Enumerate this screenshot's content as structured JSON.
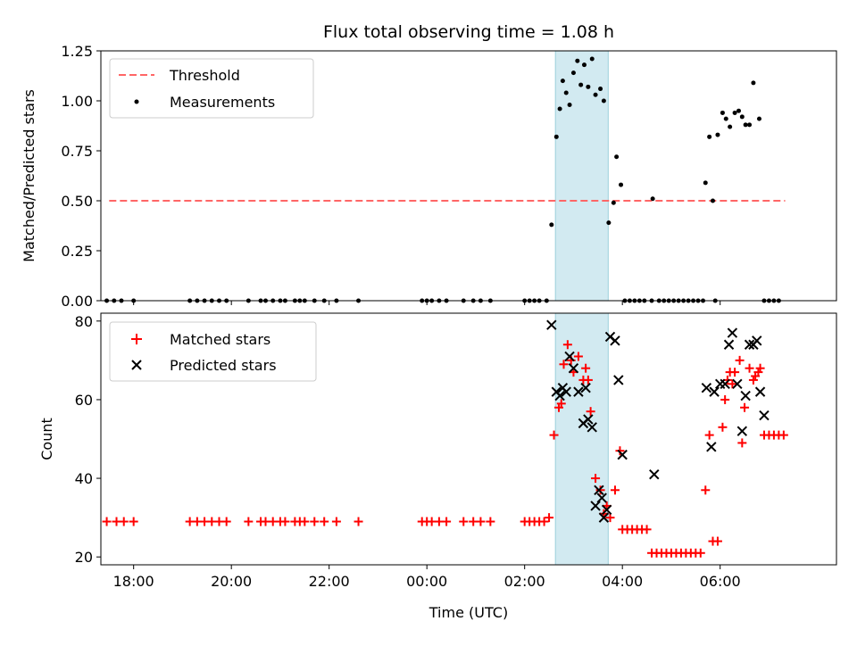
{
  "chart_data": [
    {
      "type": "scatter",
      "title": "Flux total observing time = 1.08 h",
      "xlabel": "",
      "ylabel": "Matched/Predicted stars",
      "xlim": [
        17.33,
        32.38
      ],
      "ylim": [
        0,
        1.25
      ],
      "yticks": [
        "0.00",
        "0.25",
        "0.50",
        "0.75",
        "1.00",
        "1.25"
      ],
      "highlight_span": {
        "x0": 26.63,
        "x1": 27.71,
        "color": "#add8e6"
      },
      "legend": {
        "placement": "top-left",
        "entries": [
          "Threshold",
          "Measurements"
        ]
      },
      "threshold": {
        "name": "Threshold",
        "y": 0.5,
        "x": [
          17.5,
          31.33
        ],
        "color": "#ff6666",
        "style": "dashed"
      },
      "series": [
        {
          "name": "Measurements",
          "color": "#000000",
          "marker": "dot",
          "points": [
            [
              17.45,
              0
            ],
            [
              17.6,
              0
            ],
            [
              17.75,
              0
            ],
            [
              18.0,
              0
            ],
            [
              19.15,
              0
            ],
            [
              19.3,
              0
            ],
            [
              19.45,
              0
            ],
            [
              19.6,
              0
            ],
            [
              19.75,
              0
            ],
            [
              19.9,
              0
            ],
            [
              20.35,
              0
            ],
            [
              20.6,
              0
            ],
            [
              20.7,
              0
            ],
            [
              20.85,
              0
            ],
            [
              21.0,
              0
            ],
            [
              21.1,
              0
            ],
            [
              21.3,
              0
            ],
            [
              21.4,
              0
            ],
            [
              21.5,
              0
            ],
            [
              21.7,
              0
            ],
            [
              21.9,
              0
            ],
            [
              22.15,
              0
            ],
            [
              22.6,
              0
            ],
            [
              23.9,
              0
            ],
            [
              24.0,
              0
            ],
            [
              24.1,
              0
            ],
            [
              24.25,
              0
            ],
            [
              24.4,
              0
            ],
            [
              24.75,
              0
            ],
            [
              24.95,
              0
            ],
            [
              25.1,
              0
            ],
            [
              25.3,
              0
            ],
            [
              26.0,
              0
            ],
            [
              26.1,
              0
            ],
            [
              26.2,
              0
            ],
            [
              26.3,
              0
            ],
            [
              26.45,
              0
            ],
            [
              26.55,
              0.38
            ],
            [
              26.65,
              0.82
            ],
            [
              26.72,
              0.96
            ],
            [
              26.78,
              1.1
            ],
            [
              26.85,
              1.04
            ],
            [
              26.92,
              0.98
            ],
            [
              27.0,
              1.14
            ],
            [
              27.08,
              1.2
            ],
            [
              27.15,
              1.08
            ],
            [
              27.22,
              1.18
            ],
            [
              27.3,
              1.07
            ],
            [
              27.38,
              1.21
            ],
            [
              27.45,
              1.03
            ],
            [
              27.55,
              1.06
            ],
            [
              27.62,
              1.0
            ],
            [
              27.72,
              0.39
            ],
            [
              27.82,
              0.49
            ],
            [
              27.88,
              0.72
            ],
            [
              27.97,
              0.58
            ],
            [
              28.05,
              0
            ],
            [
              28.15,
              0
            ],
            [
              28.25,
              0
            ],
            [
              28.35,
              0
            ],
            [
              28.45,
              0
            ],
            [
              28.6,
              0
            ],
            [
              28.62,
              0.51
            ],
            [
              28.75,
              0
            ],
            [
              28.85,
              0
            ],
            [
              28.95,
              0
            ],
            [
              29.05,
              0
            ],
            [
              29.15,
              0
            ],
            [
              29.25,
              0
            ],
            [
              29.35,
              0
            ],
            [
              29.45,
              0
            ],
            [
              29.55,
              0
            ],
            [
              29.65,
              0
            ],
            [
              29.7,
              0.59
            ],
            [
              29.78,
              0.82
            ],
            [
              29.85,
              0.5
            ],
            [
              29.9,
              0
            ],
            [
              29.95,
              0.83
            ],
            [
              30.05,
              0.94
            ],
            [
              30.12,
              0.91
            ],
            [
              30.2,
              0.87
            ],
            [
              30.3,
              0.94
            ],
            [
              30.38,
              0.95
            ],
            [
              30.45,
              0.92
            ],
            [
              30.52,
              0.88
            ],
            [
              30.6,
              0.88
            ],
            [
              30.68,
              1.09
            ],
            [
              30.8,
              0.91
            ],
            [
              30.9,
              0
            ],
            [
              31.0,
              0
            ],
            [
              31.1,
              0
            ],
            [
              31.2,
              0
            ]
          ]
        }
      ]
    },
    {
      "type": "scatter",
      "title": "",
      "xlabel": "Time (UTC)",
      "ylabel": "Count",
      "xlim": [
        17.33,
        32.38
      ],
      "ylim": [
        18,
        82
      ],
      "yticks": [
        "20",
        "40",
        "60",
        "80"
      ],
      "xticks": [
        "18:00",
        "20:00",
        "22:00",
        "00:00",
        "02:00",
        "04:00",
        "06:00"
      ],
      "xtick_values": [
        18,
        20,
        22,
        24,
        26,
        28,
        30
      ],
      "highlight_span": {
        "x0": 26.63,
        "x1": 27.71,
        "color": "#add8e6"
      },
      "legend": {
        "placement": "top-left",
        "entries": [
          "Matched stars",
          "Predicted stars"
        ]
      },
      "series": [
        {
          "name": "Matched stars",
          "color": "#ff0000",
          "marker": "plus",
          "points": [
            [
              17.45,
              29
            ],
            [
              17.65,
              29
            ],
            [
              17.8,
              29
            ],
            [
              18.0,
              29
            ],
            [
              19.15,
              29
            ],
            [
              19.3,
              29
            ],
            [
              19.45,
              29
            ],
            [
              19.6,
              29
            ],
            [
              19.75,
              29
            ],
            [
              19.9,
              29
            ],
            [
              20.35,
              29
            ],
            [
              20.6,
              29
            ],
            [
              20.7,
              29
            ],
            [
              20.85,
              29
            ],
            [
              21.0,
              29
            ],
            [
              21.1,
              29
            ],
            [
              21.3,
              29
            ],
            [
              21.4,
              29
            ],
            [
              21.5,
              29
            ],
            [
              21.7,
              29
            ],
            [
              21.9,
              29
            ],
            [
              22.15,
              29
            ],
            [
              22.6,
              29
            ],
            [
              23.9,
              29
            ],
            [
              24.0,
              29
            ],
            [
              24.1,
              29
            ],
            [
              24.25,
              29
            ],
            [
              24.4,
              29
            ],
            [
              24.75,
              29
            ],
            [
              24.95,
              29
            ],
            [
              25.1,
              29
            ],
            [
              25.3,
              29
            ],
            [
              26.0,
              29
            ],
            [
              26.1,
              29
            ],
            [
              26.2,
              29
            ],
            [
              26.3,
              29
            ],
            [
              26.4,
              29
            ],
            [
              26.5,
              30
            ],
            [
              26.6,
              51
            ],
            [
              26.7,
              58
            ],
            [
              26.75,
              59
            ],
            [
              26.8,
              69
            ],
            [
              26.88,
              74
            ],
            [
              26.95,
              70
            ],
            [
              27.0,
              67
            ],
            [
              27.1,
              71
            ],
            [
              27.2,
              65
            ],
            [
              27.25,
              68
            ],
            [
              27.3,
              65
            ],
            [
              27.35,
              57
            ],
            [
              27.45,
              40
            ],
            [
              27.55,
              37
            ],
            [
              27.62,
              31
            ],
            [
              27.68,
              33
            ],
            [
              27.75,
              30
            ],
            [
              27.85,
              37
            ],
            [
              27.95,
              47
            ],
            [
              28.0,
              27
            ],
            [
              28.1,
              27
            ],
            [
              28.2,
              27
            ],
            [
              28.3,
              27
            ],
            [
              28.4,
              27
            ],
            [
              28.5,
              27
            ],
            [
              28.6,
              21
            ],
            [
              28.7,
              21
            ],
            [
              28.8,
              21
            ],
            [
              28.9,
              21
            ],
            [
              29.0,
              21
            ],
            [
              29.1,
              21
            ],
            [
              29.2,
              21
            ],
            [
              29.3,
              21
            ],
            [
              29.4,
              21
            ],
            [
              29.5,
              21
            ],
            [
              29.6,
              21
            ],
            [
              29.7,
              37
            ],
            [
              29.78,
              51
            ],
            [
              29.85,
              24
            ],
            [
              29.95,
              24
            ],
            [
              30.05,
              53
            ],
            [
              30.1,
              60
            ],
            [
              30.15,
              65
            ],
            [
              30.2,
              67
            ],
            [
              30.25,
              64
            ],
            [
              30.3,
              67
            ],
            [
              30.4,
              70
            ],
            [
              30.45,
              49
            ],
            [
              30.5,
              58
            ],
            [
              30.6,
              68
            ],
            [
              30.68,
              65
            ],
            [
              30.72,
              66
            ],
            [
              30.78,
              67
            ],
            [
              30.82,
              68
            ],
            [
              30.9,
              51
            ],
            [
              31.0,
              51
            ],
            [
              31.1,
              51
            ],
            [
              31.2,
              51
            ],
            [
              31.3,
              51
            ]
          ]
        },
        {
          "name": "Predicted stars",
          "color": "#000000",
          "marker": "x",
          "points": [
            [
              26.55,
              79
            ],
            [
              26.65,
              62
            ],
            [
              26.72,
              61
            ],
            [
              26.78,
              63
            ],
            [
              26.85,
              62
            ],
            [
              26.92,
              71
            ],
            [
              27.0,
              68
            ],
            [
              27.1,
              62
            ],
            [
              27.2,
              54
            ],
            [
              27.25,
              63
            ],
            [
              27.3,
              55
            ],
            [
              27.38,
              53
            ],
            [
              27.45,
              33
            ],
            [
              27.52,
              37
            ],
            [
              27.58,
              35
            ],
            [
              27.62,
              30
            ],
            [
              27.68,
              32
            ],
            [
              27.75,
              76
            ],
            [
              27.85,
              75
            ],
            [
              27.92,
              65
            ],
            [
              28.0,
              46
            ],
            [
              28.65,
              41
            ],
            [
              29.72,
              63
            ],
            [
              29.82,
              48
            ],
            [
              29.88,
              62
            ],
            [
              30.0,
              64
            ],
            [
              30.1,
              64
            ],
            [
              30.18,
              74
            ],
            [
              30.25,
              77
            ],
            [
              30.35,
              64
            ],
            [
              30.45,
              52
            ],
            [
              30.52,
              61
            ],
            [
              30.6,
              74
            ],
            [
              30.68,
              74
            ],
            [
              30.75,
              75
            ],
            [
              30.82,
              62
            ],
            [
              30.9,
              56
            ]
          ]
        }
      ]
    }
  ]
}
